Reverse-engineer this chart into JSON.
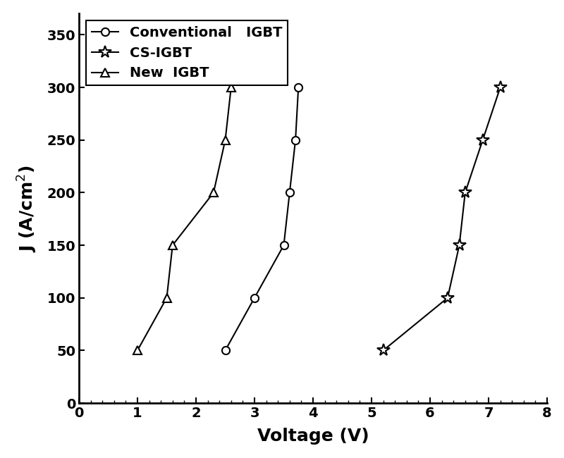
{
  "conventional_igbt": {
    "x": [
      2.5,
      3.0,
      3.5,
      3.6,
      3.7,
      3.75
    ],
    "y": [
      50,
      100,
      150,
      200,
      250,
      300
    ],
    "label": "Conventional   IGBT",
    "marker": "o",
    "color": "#000000"
  },
  "cs_igbt": {
    "x": [
      5.2,
      6.3,
      6.5,
      6.6,
      6.9,
      7.2
    ],
    "y": [
      50,
      100,
      150,
      200,
      250,
      300
    ],
    "label": "CS-IGBT",
    "marker": "*",
    "color": "#000000"
  },
  "new_igbt": {
    "x": [
      1.0,
      1.5,
      1.6,
      2.3,
      2.5,
      2.6
    ],
    "y": [
      50,
      100,
      150,
      200,
      250,
      300
    ],
    "label": "New  IGBT",
    "marker": "^",
    "color": "#000000"
  },
  "xlabel": "Voltage (V)",
  "ylabel": "J (A/cm$^2$)",
  "xlim": [
    0,
    8
  ],
  "ylim": [
    0,
    370
  ],
  "xticks": [
    0,
    1,
    2,
    3,
    4,
    5,
    6,
    7,
    8
  ],
  "yticks": [
    0,
    50,
    100,
    150,
    200,
    250,
    300,
    350
  ],
  "legend_loc": "upper left",
  "figsize": [
    8.0,
    6.5
  ],
  "dpi": 100,
  "bg_color": "#ffffff"
}
